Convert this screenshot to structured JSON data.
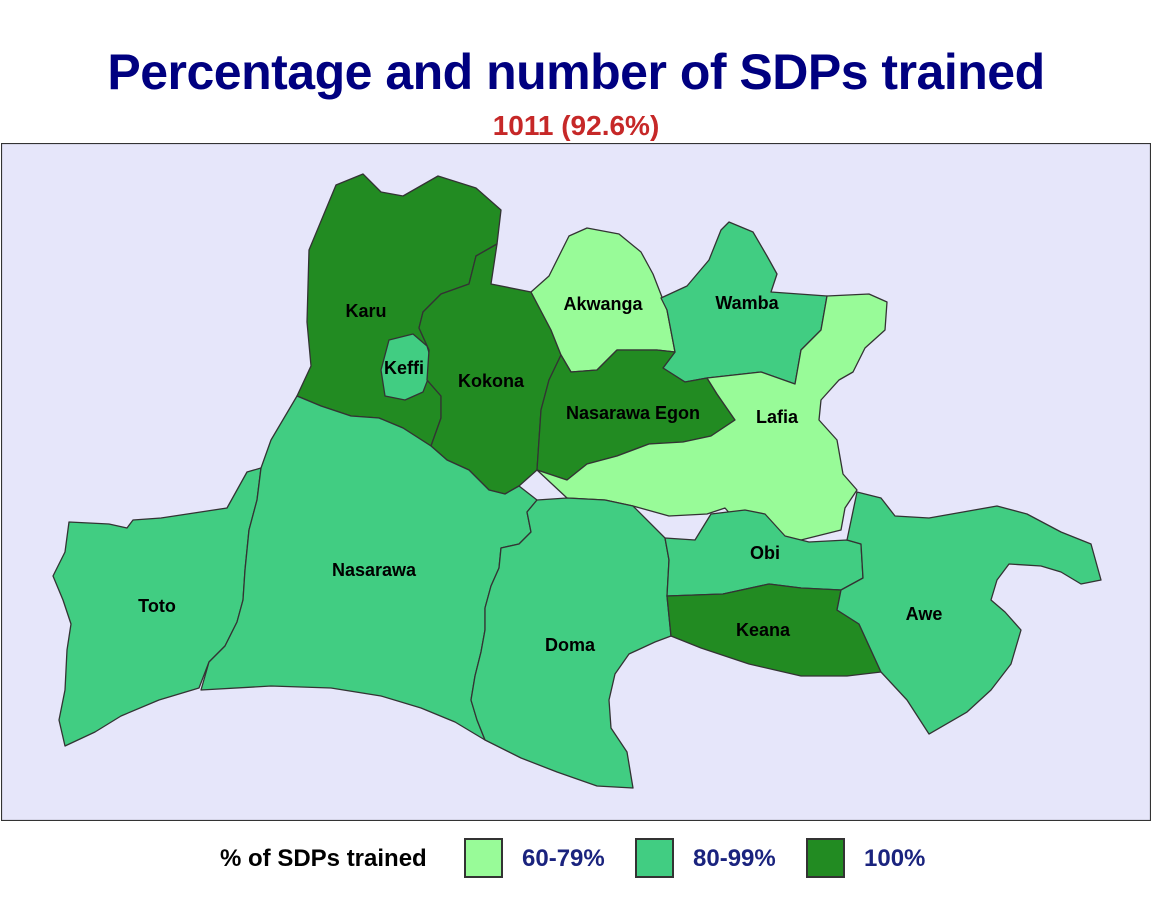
{
  "title": "Percentage and number of SDPs trained",
  "subtitle": "1011 (92.6%)",
  "colors": {
    "title": "#000080",
    "subtitle": "#c62828",
    "map_background": "#e6e6fa",
    "legend_text": "#1a237e",
    "band_60_79": "#98fb98",
    "band_80_99": "#41cd82",
    "band_100": "#228b22"
  },
  "legend": {
    "title": "% of SDPs trained",
    "items": [
      {
        "label": "60-79%",
        "color": "#98fb98"
      },
      {
        "label": "80-99%",
        "color": "#41cd82"
      },
      {
        "label": "100%",
        "color": "#228b22"
      }
    ]
  },
  "regions": [
    {
      "name": "Karu",
      "band": "100%"
    },
    {
      "name": "Keffi",
      "band": "80-99%"
    },
    {
      "name": "Kokona",
      "band": "100%"
    },
    {
      "name": "Akwanga",
      "band": "60-79%"
    },
    {
      "name": "Wamba",
      "band": "80-99%"
    },
    {
      "name": "Nasarawa Egon",
      "band": "100%"
    },
    {
      "name": "Lafia",
      "band": "60-79%"
    },
    {
      "name": "Toto",
      "band": "80-99%"
    },
    {
      "name": "Nasarawa",
      "band": "80-99%"
    },
    {
      "name": "Doma",
      "band": "80-99%"
    },
    {
      "name": "Obi",
      "band": "80-99%"
    },
    {
      "name": "Keana",
      "band": "100%"
    },
    {
      "name": "Awe",
      "band": "80-99%"
    }
  ]
}
